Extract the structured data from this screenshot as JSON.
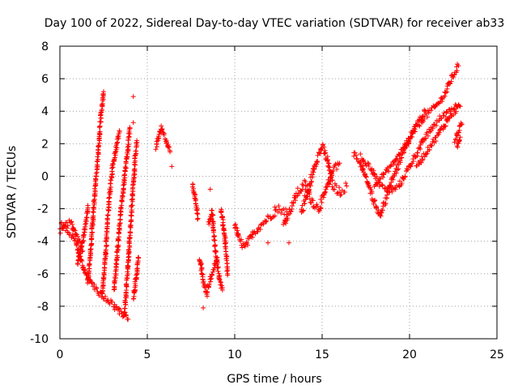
{
  "chart_data": {
    "type": "scatter",
    "title": "Day 100 of 2022, Sidereal Day-to-day VTEC variation (SDTVAR) for receiver ab33",
    "xlabel": "GPS time / hours",
    "ylabel": "SDTVAR / TECUs",
    "xlim": [
      0,
      25
    ],
    "ylim": [
      -10,
      8
    ],
    "xticks": [
      0,
      5,
      10,
      15,
      20,
      25
    ],
    "yticks": [
      -10,
      -8,
      -6,
      -4,
      -2,
      0,
      2,
      4,
      6,
      8
    ],
    "grid": true,
    "marker": "+",
    "color": "#ff0000",
    "tracks": [
      {
        "points": [
          [
            0.0,
            -2.8
          ],
          [
            0.3,
            -3.2
          ],
          [
            0.6,
            -3.6
          ],
          [
            0.9,
            -4.0
          ],
          [
            1.2,
            -5.2
          ],
          [
            1.5,
            -6.0
          ],
          [
            1.8,
            -6.6
          ],
          [
            2.1,
            -7.0
          ],
          [
            2.4,
            -7.3
          ],
          [
            2.7,
            -7.6
          ],
          [
            3.0,
            -7.9
          ],
          [
            3.3,
            -8.2
          ],
          [
            3.6,
            -8.5
          ],
          [
            3.9,
            -8.8
          ]
        ],
        "spread": 0.35
      },
      {
        "points": [
          [
            0.0,
            -3.4
          ],
          [
            0.3,
            -3.0
          ],
          [
            0.6,
            -2.8
          ],
          [
            0.8,
            -3.3
          ],
          [
            1.0,
            -3.8
          ],
          [
            1.3,
            -4.6
          ]
        ],
        "spread": 0.35
      },
      {
        "points": [
          [
            1.0,
            -5.4
          ],
          [
            1.3,
            -4.0
          ],
          [
            1.5,
            -2.8
          ],
          [
            1.6,
            -1.8
          ]
        ],
        "spread": 0.25
      },
      {
        "points": [
          [
            1.6,
            -6.5
          ],
          [
            1.8,
            -4.0
          ],
          [
            2.0,
            -1.0
          ],
          [
            2.2,
            1.5
          ],
          [
            2.35,
            3.8
          ],
          [
            2.5,
            5.2
          ]
        ],
        "spread": 0.25
      },
      {
        "points": [
          [
            2.4,
            -7.5
          ],
          [
            2.6,
            -5.0
          ],
          [
            2.8,
            -1.5
          ],
          [
            3.0,
            0.5
          ],
          [
            3.2,
            1.6
          ],
          [
            3.4,
            2.8
          ]
        ],
        "spread": 0.25
      },
      {
        "points": [
          [
            3.1,
            -7.0
          ],
          [
            3.3,
            -4.5
          ],
          [
            3.5,
            -2.0
          ],
          [
            3.7,
            0.0
          ],
          [
            3.9,
            1.8
          ],
          [
            4.0,
            3.0
          ]
        ],
        "spread": 0.25
      },
      {
        "points": [
          [
            3.7,
            -8.5
          ],
          [
            3.9,
            -5.5
          ],
          [
            4.1,
            -2.0
          ],
          [
            4.3,
            1.0
          ],
          [
            4.4,
            2.2
          ]
        ],
        "spread": 0.25
      },
      {
        "points": [
          [
            4.2,
            -7.5
          ],
          [
            4.4,
            -6.0
          ],
          [
            4.5,
            -5.0
          ]
        ],
        "spread": 0.3
      },
      {
        "points": [
          [
            5.5,
            1.8
          ],
          [
            5.8,
            3.0
          ],
          [
            6.0,
            2.4
          ],
          [
            6.3,
            1.5
          ]
        ],
        "spread": 0.3
      },
      {
        "points": [
          [
            7.6,
            -0.5
          ],
          [
            7.8,
            -1.8
          ],
          [
            7.9,
            -2.6
          ]
        ],
        "spread": 0.3
      },
      {
        "points": [
          [
            8.0,
            -5.0
          ],
          [
            8.2,
            -6.4
          ],
          [
            8.4,
            -7.2
          ],
          [
            8.7,
            -6.0
          ],
          [
            9.0,
            -5.0
          ]
        ],
        "spread": 0.4
      },
      {
        "points": [
          [
            8.5,
            -3.0
          ],
          [
            8.7,
            -2.2
          ],
          [
            8.9,
            -4.6
          ],
          [
            9.1,
            -6.2
          ],
          [
            9.3,
            -7.0
          ]
        ],
        "spread": 0.4
      },
      {
        "points": [
          [
            9.2,
            -2.0
          ],
          [
            9.4,
            -3.4
          ],
          [
            9.5,
            -4.8
          ],
          [
            9.6,
            -6.0
          ]
        ],
        "spread": 0.4
      },
      {
        "points": [
          [
            10.0,
            -3.0
          ],
          [
            10.3,
            -4.0
          ],
          [
            10.6,
            -4.4
          ],
          [
            11.0,
            -3.6
          ],
          [
            11.5,
            -3.0
          ],
          [
            12.0,
            -2.5
          ],
          [
            12.5,
            -2.0
          ],
          [
            13.0,
            -2.2
          ]
        ],
        "spread": 0.45
      },
      {
        "points": [
          [
            12.8,
            -3.0
          ],
          [
            13.2,
            -2.0
          ],
          [
            13.6,
            -1.0
          ],
          [
            14.0,
            -0.5
          ],
          [
            14.4,
            -1.5
          ],
          [
            14.8,
            -2.0
          ],
          [
            15.2,
            -1.0
          ],
          [
            15.6,
            0.5
          ],
          [
            16.0,
            0.8
          ]
        ],
        "spread": 0.55
      },
      {
        "points": [
          [
            13.8,
            -2.2
          ],
          [
            14.2,
            -1.0
          ],
          [
            14.6,
            0.8
          ],
          [
            15.0,
            1.8
          ],
          [
            15.3,
            1.0
          ],
          [
            15.6,
            -0.5
          ],
          [
            16.0,
            -1.0
          ],
          [
            16.4,
            -0.6
          ]
        ],
        "spread": 0.55
      },
      {
        "points": [
          [
            16.8,
            1.4
          ],
          [
            17.2,
            0.8
          ],
          [
            17.6,
            -0.4
          ],
          [
            18.0,
            -1.6
          ],
          [
            18.3,
            -2.4
          ],
          [
            18.6,
            -1.6
          ],
          [
            19.0,
            -0.2
          ],
          [
            19.5,
            1.0
          ],
          [
            20.0,
            2.2
          ],
          [
            20.5,
            3.2
          ],
          [
            21.0,
            3.8
          ],
          [
            21.5,
            4.3
          ],
          [
            22.0,
            5.0
          ],
          [
            22.4,
            6.0
          ],
          [
            22.8,
            6.8
          ]
        ],
        "spread": 0.4
      },
      {
        "points": [
          [
            17.2,
            1.2
          ],
          [
            17.8,
            0.5
          ],
          [
            18.2,
            -0.4
          ],
          [
            18.6,
            -0.8
          ],
          [
            19.0,
            -0.9
          ],
          [
            19.4,
            -0.6
          ],
          [
            19.8,
            0.2
          ],
          [
            20.3,
            1.2
          ],
          [
            20.8,
            2.2
          ],
          [
            21.3,
            3.0
          ],
          [
            21.8,
            3.6
          ],
          [
            22.3,
            4.1
          ],
          [
            22.8,
            4.4
          ]
        ],
        "spread": 0.35
      },
      {
        "points": [
          [
            18.0,
            -0.5
          ],
          [
            18.6,
            0.2
          ],
          [
            19.2,
            1.0
          ],
          [
            19.8,
            2.0
          ],
          [
            20.4,
            3.2
          ],
          [
            20.9,
            4.0
          ]
        ],
        "spread": 0.3
      },
      {
        "points": [
          [
            20.4,
            0.6
          ],
          [
            20.9,
            1.4
          ],
          [
            21.4,
            2.2
          ],
          [
            21.9,
            3.0
          ],
          [
            22.4,
            3.8
          ],
          [
            22.9,
            4.3
          ]
        ],
        "spread": 0.35
      },
      {
        "points": [
          [
            22.6,
            2.2
          ],
          [
            22.8,
            2.8
          ],
          [
            23.0,
            3.2
          ]
        ],
        "spread": 0.3
      },
      {
        "points": [
          [
            22.7,
            1.8
          ],
          [
            22.9,
            2.4
          ]
        ],
        "spread": 0.25
      }
    ],
    "outliers": [
      [
        4.2,
        4.9
      ],
      [
        4.2,
        3.3
      ],
      [
        6.4,
        0.6
      ],
      [
        8.2,
        -8.1
      ],
      [
        8.6,
        -0.8
      ],
      [
        11.9,
        -4.1
      ],
      [
        12.3,
        -1.9
      ],
      [
        13.1,
        -4.1
      ],
      [
        14.0,
        -1.2
      ]
    ]
  }
}
